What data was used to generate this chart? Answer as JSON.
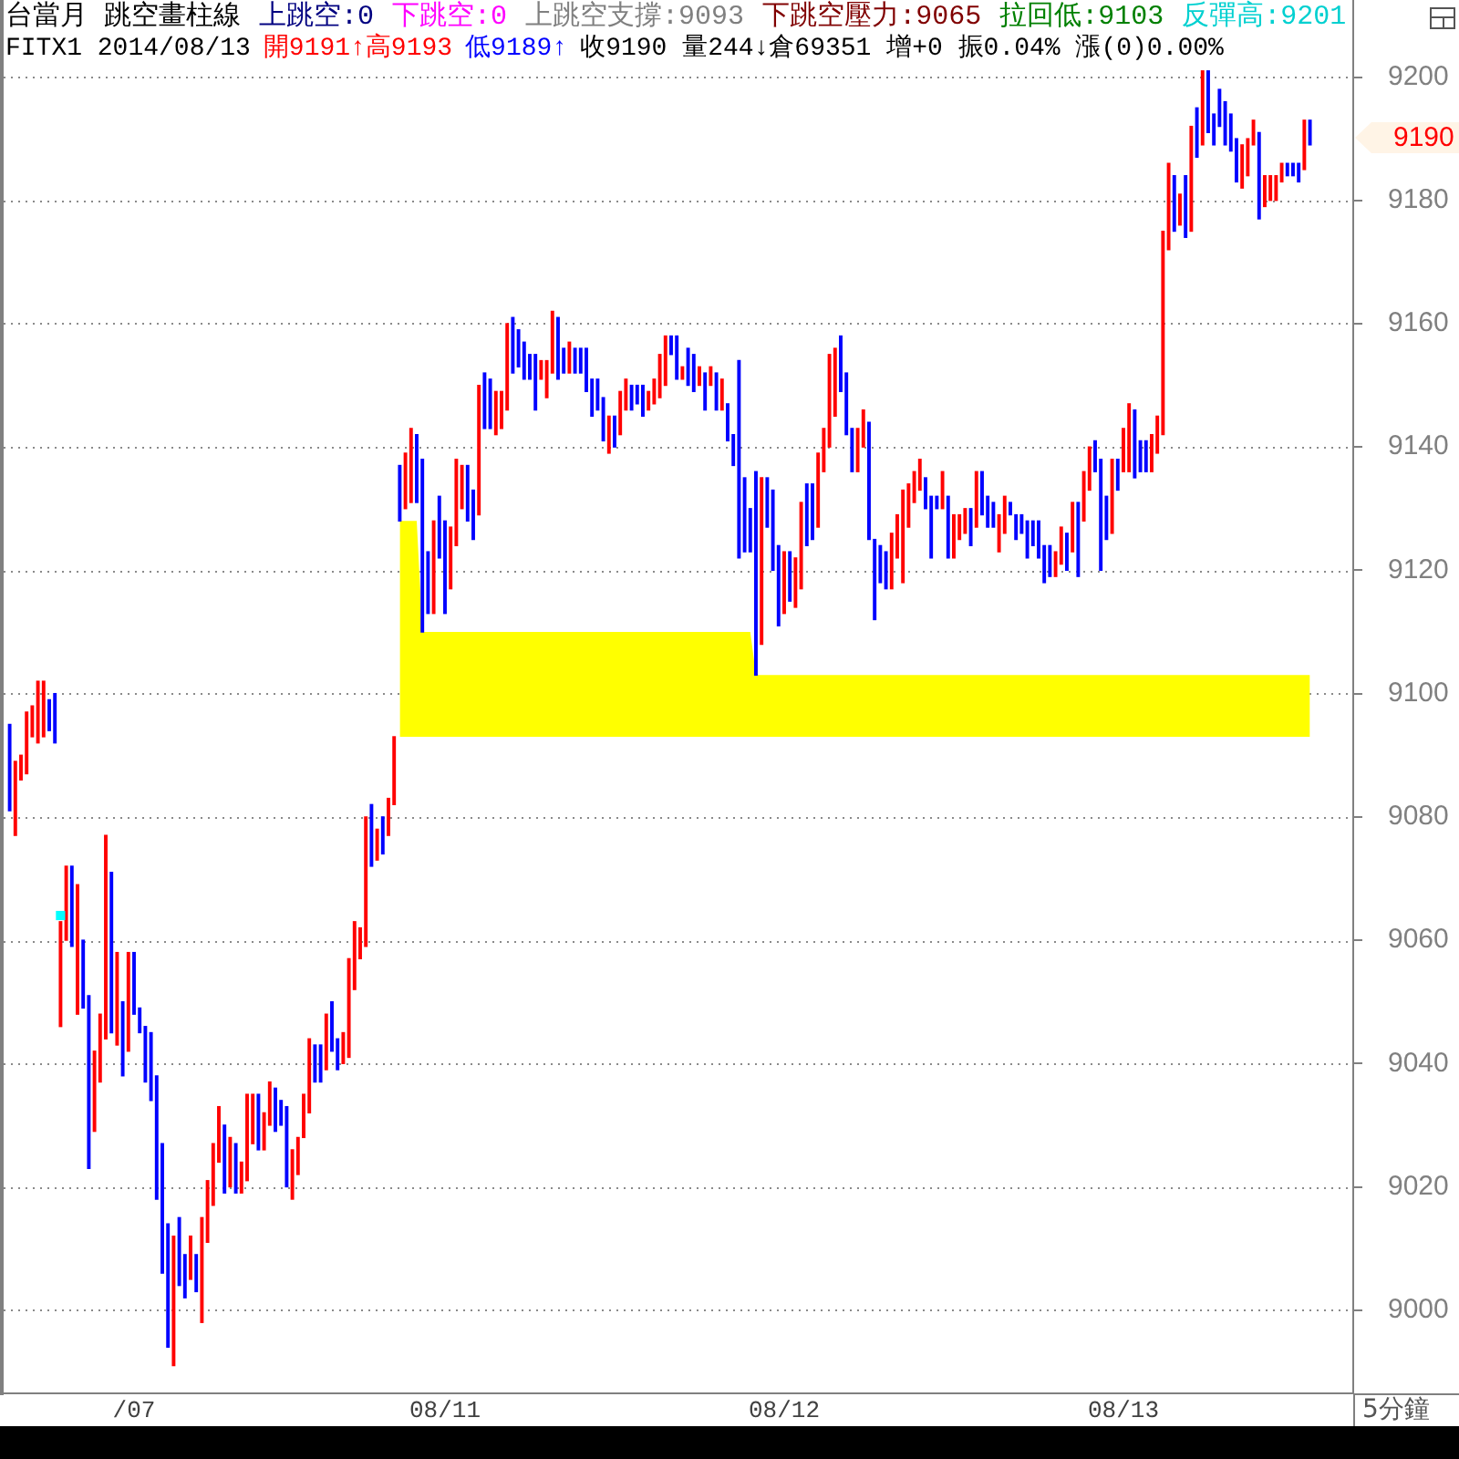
{
  "chart_data": {
    "type": "bar",
    "title": "台當月 跳空畫柱線",
    "annotations": [
      "上跳空:0",
      "下跳空:0",
      "上跳空支撐:9093",
      "下跳空壓力:9065",
      "拉回低:9103",
      "反彈高:9201",
      "FITX1 2014/08/13",
      "開9191↑高9193",
      "低9189↑",
      "收9190 量244↓倉69351 增+0 振0.04% 漲(0)0.00%",
      "5分鐘",
      "9190"
    ],
    "categories": [
      null,
      null,
      null,
      null,
      null,
      null,
      null,
      null,
      null,
      null,
      null,
      null,
      null,
      null,
      null,
      null,
      null,
      null,
      null,
      null,
      null,
      null,
      "/07",
      null,
      null,
      null,
      null,
      null,
      null,
      null,
      null,
      null,
      null,
      null,
      null,
      null,
      null,
      null,
      null,
      null,
      null,
      null,
      null,
      null,
      null,
      null,
      null,
      null,
      null,
      null,
      null,
      null,
      null,
      null,
      null,
      null,
      null,
      null,
      null,
      null,
      null,
      null,
      null,
      null,
      null,
      null,
      null,
      null,
      null,
      null,
      null,
      null,
      null,
      null,
      null,
      null,
      null,
      "08/11",
      null,
      null,
      null,
      null,
      null,
      null,
      null,
      null,
      null,
      null,
      null,
      null,
      null,
      null,
      null,
      null,
      null,
      null,
      null,
      null,
      null,
      null,
      null,
      null,
      null,
      null,
      null,
      null,
      null,
      null,
      null,
      null,
      null,
      null,
      null,
      null,
      null,
      null,
      null,
      null,
      null,
      null,
      null,
      null,
      null,
      null,
      null,
      null,
      null,
      null,
      null,
      null,
      null,
      null,
      null,
      null,
      null,
      null,
      null,
      "08/12",
      null,
      null,
      null,
      null,
      null,
      null,
      null,
      null,
      null,
      null,
      null,
      null,
      null,
      null,
      null,
      null,
      null,
      null,
      null,
      null,
      null,
      null,
      null,
      null,
      null,
      null,
      null,
      null,
      null,
      null,
      null,
      null,
      null,
      null,
      null,
      null,
      null,
      null,
      null,
      null,
      null,
      null,
      null,
      null,
      null,
      null,
      null,
      null,
      null,
      null,
      null,
      null,
      null,
      null,
      null,
      null,
      null,
      null,
      null,
      "08/13",
      null,
      null,
      null,
      null,
      null,
      null,
      null,
      null,
      null,
      null,
      null,
      null,
      null,
      null,
      null,
      null,
      null,
      null,
      null,
      null,
      null,
      null,
      null,
      null,
      null,
      null,
      null,
      null,
      null,
      null,
      null,
      null,
      null
    ],
    "series": [
      {
        "type": "line",
        "color": "#ffff00",
        "values": [
          null,
          null,
          null,
          null,
          null,
          null,
          null,
          null,
          null,
          null,
          null,
          null,
          null,
          null,
          null,
          null,
          null,
          null,
          null,
          null,
          null,
          null,
          null,
          null,
          null,
          null,
          null,
          null,
          null,
          null,
          null,
          null,
          null,
          null,
          null,
          null,
          null,
          null,
          null,
          null,
          null,
          null,
          null,
          null,
          null,
          null,
          null,
          null,
          null,
          null,
          null,
          null,
          null,
          null,
          null,
          null,
          null,
          null,
          null,
          null,
          null,
          null,
          null,
          null,
          null,
          null,
          null,
          null,
          null,
          null,
          null,
          null,
          null,
          null,
          null,
          null,
          null,
          null,
          null,
          null,
          null,
          null,
          null,
          null,
          null,
          null,
          null,
          null,
          null,
          null,
          null,
          null,
          null,
          null,
          null,
          null,
          null,
          null,
          null,
          null,
          null,
          null,
          null,
          null,
          null,
          null,
          null,
          null,
          null,
          null,
          null,
          null,
          null,
          null,
          null,
          null,
          null,
          null,
          null,
          null,
          null,
          null,
          null,
          null,
          null,
          null,
          null,
          null,
          null,
          null,
          null,
          null,
          null,
          null,
          null,
          null,
          null,
          null,
          null,
          null,
          null,
          null,
          null,
          null,
          null,
          null,
          null,
          null,
          null,
          null,
          null,
          null,
          null,
          null,
          null,
          null,
          null,
          null,
          null,
          null,
          null,
          null,
          null,
          null,
          null,
          null,
          null,
          null,
          null,
          null,
          null,
          null,
          null,
          null,
          null,
          null,
          null,
          null,
          null,
          null,
          null,
          null,
          null,
          null,
          null,
          null,
          null,
          null,
          null,
          null,
          null,
          null,
          null,
          null,
          null,
          null,
          null,
          null,
          null,
          null,
          null,
          null,
          null,
          null,
          null,
          null,
          null,
          null,
          null,
          null,
          null,
          null,
          null,
          null,
          null,
          null,
          null,
          null,
          null,
          null,
          null,
          null,
          null,
          null,
          null,
          null,
          null,
          null,
          null,
          null,
          null
        ],
        "upper": [
          null,
          null,
          null,
          null,
          null,
          null,
          null,
          null,
          null,
          null,
          null,
          null,
          null,
          null,
          null,
          null,
          null,
          null,
          null,
          null,
          null,
          null,
          null,
          null,
          null,
          null,
          null,
          null,
          null,
          null,
          null,
          null,
          null,
          null,
          null,
          null,
          null,
          null,
          null,
          null,
          null,
          null,
          null,
          null,
          null,
          null,
          null,
          null,
          null,
          null,
          null,
          null,
          null,
          null,
          null,
          null,
          null,
          null,
          null,
          null,
          null,
          null,
          null,
          null,
          null,
          null,
          null,
          null,
          null,
          9128,
          9128,
          9128,
          9128,
          9110,
          9110,
          9110,
          9110,
          9110,
          9110,
          9110,
          9110,
          9110,
          9110,
          9110,
          9110,
          9110,
          9110,
          9110,
          9110,
          9110,
          9110,
          9110,
          9110,
          9110,
          9110,
          9110,
          9110,
          9110,
          9110,
          9110,
          9110,
          9110,
          9110,
          9110,
          9110,
          9110,
          9110,
          9110,
          9110,
          9110,
          9110,
          9110,
          9110,
          9110,
          9110,
          9110,
          9110,
          9110,
          9110,
          9110,
          9110,
          9110,
          9110,
          9110,
          9110,
          9110,
          9110,
          9110,
          9110,
          9110,
          9110,
          9110,
          9103,
          9103,
          9103,
          9103,
          9103,
          9103,
          9103,
          9103,
          9103,
          9103,
          9103,
          9103,
          9103,
          9103,
          9103,
          9103,
          9103,
          9103,
          9103,
          9103,
          9103,
          9103,
          9103,
          9103,
          9103,
          9103,
          9103,
          9103,
          9103,
          9103,
          9103,
          9103,
          9103,
          9103,
          9103,
          9103,
          9103,
          9103,
          9103,
          9103,
          9103,
          9103,
          9103,
          9103,
          9103,
          9103,
          9103,
          9103,
          9103,
          9103,
          9103,
          9103,
          9103,
          9103,
          9103,
          9103,
          9103,
          9103,
          9103,
          9103,
          9103,
          9103,
          9103,
          9103,
          9103,
          9103,
          9103,
          9103,
          9103,
          9103,
          9103,
          9103,
          9103,
          9103,
          9103,
          9103,
          9103,
          9103,
          9103,
          9103,
          9103,
          9103,
          9103,
          9103,
          9103,
          9103,
          9103,
          9103,
          9103,
          9103,
          9103,
          9103,
          9103,
          9103,
          9103,
          9103,
          9103,
          9103,
          9103
        ],
        "lower": [
          null,
          null,
          null,
          null,
          null,
          null,
          null,
          null,
          null,
          null,
          null,
          null,
          null,
          null,
          null,
          null,
          null,
          null,
          null,
          null,
          null,
          null,
          null,
          null,
          null,
          null,
          null,
          null,
          null,
          null,
          null,
          null,
          null,
          null,
          null,
          null,
          null,
          null,
          null,
          null,
          null,
          null,
          null,
          null,
          null,
          null,
          null,
          null,
          null,
          null,
          null,
          null,
          null,
          null,
          null,
          null,
          null,
          null,
          null,
          null,
          null,
          null,
          null,
          null,
          null,
          null,
          null,
          null,
          null,
          9093,
          9093,
          9093,
          9093,
          9093,
          9093,
          9093,
          9093,
          9093,
          9093,
          9093,
          9093,
          9093,
          9093,
          9093,
          9093,
          9093,
          9093,
          9093,
          9093,
          9093,
          9093,
          9093,
          9093,
          9093,
          9093,
          9093,
          9093,
          9093,
          9093,
          9093,
          9093,
          9093,
          9093,
          9093,
          9093,
          9093,
          9093,
          9093,
          9093,
          9093,
          9093,
          9093,
          9093,
          9093,
          9093,
          9093,
          9093,
          9093,
          9093,
          9093,
          9093,
          9093,
          9093,
          9093,
          9093,
          9093,
          9093,
          9093,
          9093,
          9093,
          9093,
          9093,
          9093,
          9093,
          9093,
          9093,
          9093,
          9093,
          9093,
          9093,
          9093,
          9093,
          9093,
          9093,
          9093,
          9093,
          9093,
          9093,
          9093,
          9093,
          9093,
          9093,
          9093,
          9093,
          9093,
          9093,
          9093,
          9093,
          9093,
          9093,
          9093,
          9093,
          9093,
          9093,
          9093,
          9093,
          9093,
          9093,
          9093,
          9093,
          9093,
          9093,
          9093,
          9093,
          9093,
          9093,
          9093,
          9093,
          9093,
          9093,
          9093,
          9093,
          9093,
          9093,
          9093,
          9093,
          9093,
          9093,
          9093,
          9093,
          9093,
          9093,
          9093,
          9093,
          9093,
          9093,
          9093,
          9093,
          9093,
          9093,
          9093,
          9093,
          9093,
          9093,
          9093,
          9093,
          9093,
          9093,
          9093,
          9093,
          9093,
          9093,
          9093,
          9093,
          9093,
          9093,
          9093,
          9093,
          9093,
          9093,
          9093,
          9093,
          9093,
          9093,
          9093,
          9093,
          9093,
          9093,
          9093,
          9093,
          9093
        ]
      },
      {
        "colors": [
          "#0000ff",
          "#ff0000",
          "#ff0000",
          "#ff0000",
          "#ff0000",
          "#ff0000",
          "#ff0000",
          "#0000ff",
          "#0000ff",
          "#ff0000",
          "#ff0000",
          "#0000ff",
          "#ff0000",
          "#0000ff",
          "#0000ff",
          "#ff0000",
          "#ff0000",
          "#ff0000",
          "#0000ff",
          "#ff0000",
          "#0000ff",
          "#ff0000",
          "#0000ff",
          "#0000ff",
          "#0000ff",
          "#0000ff",
          "#0000ff",
          "#0000ff",
          "#0000ff",
          "#ff0000",
          "#0000ff",
          "#0000ff",
          "#ff0000",
          "#0000ff",
          "#ff0000",
          "#ff0000",
          "#ff0000",
          "#ff0000",
          "#0000ff",
          "#ff0000",
          "#0000ff",
          "#ff0000",
          "#ff0000",
          "#ff0000",
          "#0000ff",
          "#ff0000",
          "#ff0000",
          "#0000ff",
          "#0000ff",
          "#0000ff",
          "#ff0000",
          "#ff0000",
          "#ff0000",
          "#ff0000",
          "#0000ff",
          "#0000ff",
          "#ff0000",
          "#0000ff",
          "#0000ff",
          "#ff0000",
          "#ff0000",
          "#ff0000",
          "#ff0000",
          "#ff0000",
          "#0000ff",
          "#ff0000",
          "#0000ff",
          "#ff0000",
          "#ff0000",
          "#0000ff",
          "#ff0000",
          "#ff0000",
          "#0000ff",
          "#0000ff",
          "#0000ff",
          "#ff0000",
          "#0000ff",
          "#0000ff",
          "#ff0000",
          "#ff0000",
          "#ff0000",
          "#0000ff",
          "#0000ff",
          "#ff0000",
          "#0000ff",
          "#0000ff",
          "#ff0000",
          "#ff0000",
          "#ff0000",
          "#0000ff",
          "#0000ff",
          "#0000ff",
          "#0000ff",
          "#0000ff",
          "#ff0000",
          "#ff0000",
          "#ff0000",
          "#0000ff",
          "#0000ff",
          "#ff0000",
          "#0000ff",
          "#0000ff",
          "#0000ff",
          "#0000ff",
          "#0000ff",
          "#0000ff",
          "#ff0000",
          "#0000ff",
          "#ff0000",
          "#ff0000",
          "#0000ff",
          "#0000ff",
          "#0000ff",
          "#ff0000",
          "#ff0000",
          "#ff0000",
          "#ff0000",
          "#0000ff",
          "#0000ff",
          "#ff0000",
          "#0000ff",
          "#0000ff",
          "#ff0000",
          "#0000ff",
          "#ff0000",
          "#0000ff",
          "#ff0000",
          "#0000ff",
          "#0000ff",
          "#0000ff",
          "#0000ff",
          "#0000ff",
          "#0000ff",
          "#ff0000",
          "#0000ff",
          "#0000ff",
          "#0000ff",
          "#ff0000",
          "#0000ff",
          "#ff0000",
          "#ff0000",
          "#0000ff",
          "#0000ff",
          "#ff0000",
          "#ff0000",
          "#ff0000",
          "#ff0000",
          "#0000ff",
          "#0000ff",
          "#0000ff",
          "#ff0000",
          "#ff0000",
          "#0000ff",
          "#0000ff",
          "#0000ff",
          "#0000ff",
          "#ff0000",
          "#ff0000",
          "#ff0000",
          "#ff0000",
          "#ff0000",
          "#ff0000",
          "#0000ff",
          "#0000ff",
          "#0000ff",
          "#ff0000",
          "#0000ff",
          "#ff0000",
          "#ff0000",
          "#ff0000",
          "#0000ff",
          "#ff0000",
          "#0000ff",
          "#0000ff",
          "#0000ff",
          "#ff0000",
          "#ff0000",
          "#0000ff",
          "#0000ff",
          "#0000ff",
          "#0000ff",
          "#0000ff",
          "#0000ff",
          "#0000ff",
          "#0000ff",
          "#ff0000",
          "#ff0000",
          "#0000ff",
          "#ff0000",
          "#0000ff",
          "#ff0000",
          "#ff0000",
          "#0000ff",
          "#0000ff",
          "#0000ff",
          "#ff0000",
          "#0000ff",
          "#ff0000",
          "#ff0000",
          "#0000ff",
          "#0000ff",
          "#0000ff",
          "#ff0000",
          "#ff0000",
          "#ff0000",
          "#ff0000",
          "#0000ff",
          "#ff0000",
          "#0000ff",
          "#ff0000",
          "#0000ff",
          "#ff0000",
          "#0000ff",
          "#0000ff",
          "#0000ff",
          "#0000ff",
          "#0000ff",
          "#0000ff",
          "#ff0000",
          "#ff0000",
          "#ff0000",
          "#0000ff",
          "#ff0000",
          "#ff0000",
          "#ff0000",
          "#ff0000",
          "#0000ff",
          "#0000ff",
          "#0000ff",
          "#ff0000",
          "#0000ff"
        ],
        "base": [
          9081,
          9077,
          9086,
          9087,
          9093,
          9092,
          9093,
          9094,
          9092,
          9046,
          9060,
          9059,
          9048,
          9049,
          9023,
          9029,
          9037,
          9044,
          9045,
          9043,
          9038,
          9042,
          9048,
          9045,
          9037,
          9034,
          9018,
          9006,
          8994,
          8991,
          9004,
          9002,
          9005,
          9003,
          8998,
          9011,
          9017,
          9024,
          9019,
          9020,
          9019,
          9019,
          9021,
          9027,
          9026,
          9026,
          9030,
          9029,
          9030,
          9020,
          9018,
          9022,
          9028,
          9032,
          9037,
          9037,
          9039,
          9042,
          9039,
          9040,
          9041,
          9052,
          9057,
          9059,
          9072,
          9073,
          9074,
          9077,
          9082,
          9128,
          9130,
          9131,
          9131,
          9110,
          9113,
          9113,
          9122,
          9113,
          9117,
          9124,
          9130,
          9128,
          9125,
          9129,
          9143,
          9143,
          9142,
          9143,
          9146,
          9152,
          9153,
          9151,
          9151,
          9146,
          9151,
          9148,
          9152,
          9151,
          9152,
          9152,
          9152,
          9152,
          9149,
          9145,
          9146,
          9141,
          9139,
          9140,
          9142,
          9146,
          9146,
          9147,
          9145,
          9146,
          9147,
          9148,
          9150,
          9155,
          9151,
          9151,
          9150,
          9149,
          9150,
          9146,
          9150,
          9146,
          9146,
          9141,
          9137,
          9122,
          9123,
          9123,
          9103,
          9108,
          9127,
          9120,
          9111,
          9113,
          9115,
          9114,
          9117,
          9124,
          9125,
          9127,
          9136,
          9140,
          9145,
          9149,
          9142,
          9136,
          9136,
          9140,
          9125,
          9112,
          9118,
          9117,
          9117,
          9122,
          9118,
          9127,
          9131,
          9133,
          9130,
          9122,
          9130,
          9130,
          9122,
          9122,
          9125,
          9126,
          9124,
          9127,
          9129,
          9127,
          9127,
          9123,
          9126,
          9129,
          9125,
          9126,
          9122,
          9124,
          9122,
          9118,
          9119,
          9119,
          9121,
          9120,
          9123,
          9119,
          9128,
          9133,
          9136,
          9120,
          9125,
          9126,
          9133,
          9136,
          9136,
          9135,
          9136,
          9136,
          9136,
          9139,
          9142,
          9172,
          9175,
          9176,
          9174,
          9175,
          9187,
          9189,
          9191,
          9189,
          9192,
          9189,
          9188,
          9183,
          9182,
          9184,
          9189,
          9177,
          9179,
          9180,
          9180,
          9183,
          9184,
          9184,
          9183,
          9185,
          9189
        ],
        "values": [
          14,
          12,
          4,
          10,
          5,
          10,
          9,
          5,
          8,
          17,
          12,
          13,
          21,
          11,
          28,
          13,
          11,
          33,
          26,
          15,
          12,
          16,
          10,
          4,
          9,
          11,
          20,
          21,
          20,
          21,
          11,
          7,
          7,
          6,
          17,
          10,
          10,
          9,
          11,
          8,
          8,
          5,
          14,
          8,
          9,
          6,
          7,
          7,
          4,
          13,
          8,
          6,
          7,
          12,
          6,
          6,
          9,
          8,
          5,
          5,
          16,
          11,
          5,
          21,
          10,
          5,
          6,
          6,
          11,
          9,
          9,
          12,
          11,
          28,
          10,
          15,
          10,
          15,
          10,
          14,
          7,
          9,
          8,
          21,
          9,
          8,
          7,
          6,
          14,
          9,
          6,
          6,
          4,
          9,
          3,
          6,
          10,
          10,
          4,
          5,
          4,
          4,
          7,
          6,
          5,
          7,
          6,
          5,
          7,
          5,
          4,
          3,
          5,
          3,
          4,
          7,
          8,
          3,
          7,
          2,
          6,
          6,
          3,
          6,
          3,
          6,
          5,
          6,
          5,
          32,
          12,
          7,
          33,
          27,
          8,
          13,
          13,
          10,
          8,
          8,
          14,
          10,
          9,
          12,
          7,
          15,
          11,
          9,
          10,
          7,
          7,
          6,
          19,
          13,
          6,
          6,
          9,
          7,
          15,
          7,
          5,
          5,
          5,
          10,
          2,
          6,
          10,
          7,
          4,
          4,
          6,
          9,
          7,
          5,
          4,
          6,
          6,
          2,
          4,
          3,
          6,
          4,
          6,
          6,
          5,
          4,
          6,
          6,
          8,
          12,
          8,
          7,
          5,
          18,
          7,
          12,
          5,
          7,
          11,
          11,
          5,
          5,
          6,
          6,
          33,
          14,
          9,
          5,
          10,
          17,
          8,
          12,
          10,
          5,
          6,
          7,
          6,
          7,
          7,
          6,
          4,
          14,
          5,
          4,
          4,
          3,
          2,
          2,
          3,
          8,
          4
        ]
      },
      {
        "type": "scatter",
        "color": "#00ffff",
        "marker": "square",
        "values": [
          null,
          null,
          null,
          null,
          null,
          null,
          null,
          null,
          null,
          9064,
          null,
          null,
          null,
          null,
          null,
          null,
          null,
          null,
          null,
          null,
          null,
          null,
          null,
          null,
          null,
          null,
          null,
          null,
          null,
          null,
          null,
          null,
          null,
          null,
          null,
          null,
          null,
          null,
          null,
          null,
          null,
          null,
          null,
          null,
          null,
          null,
          null,
          null,
          null,
          null,
          null,
          null,
          null,
          null,
          null,
          null,
          null,
          null,
          null,
          null,
          null,
          null,
          null,
          null,
          null,
          null,
          null,
          null,
          null,
          null,
          null,
          null,
          null,
          null,
          null,
          null,
          null,
          null,
          null,
          null,
          null,
          null,
          null,
          null,
          null,
          null,
          null,
          null,
          null,
          null,
          null,
          null,
          null,
          null,
          null,
          null,
          null,
          null,
          null,
          null,
          null,
          null,
          null,
          null,
          null,
          null,
          null,
          null,
          null,
          null,
          null,
          null,
          null,
          null,
          null,
          null,
          null,
          null,
          null,
          null,
          null,
          null,
          null,
          null,
          null,
          null,
          null,
          null,
          null,
          null,
          null,
          null,
          null,
          null,
          null,
          null,
          null,
          null,
          null,
          null,
          null,
          null,
          null,
          null,
          null,
          null,
          null,
          null,
          null,
          null,
          null,
          null,
          null,
          null,
          null,
          null,
          null,
          null,
          null,
          null,
          null,
          null,
          null,
          null,
          null,
          null,
          null,
          null,
          null,
          null,
          null,
          null,
          null,
          null,
          null,
          null,
          null,
          null,
          null,
          null,
          null,
          null,
          null,
          null,
          null,
          null,
          null,
          null,
          null,
          null,
          null,
          null,
          null,
          null,
          null,
          null,
          null,
          null,
          null,
          null,
          null,
          null,
          null,
          null,
          null,
          null,
          null,
          null,
          null,
          null,
          null,
          null,
          null,
          null,
          null,
          null,
          null,
          null,
          null,
          null,
          null,
          null,
          null,
          null,
          null,
          null,
          null,
          null,
          null,
          null,
          null
        ]
      }
    ],
    "ylim": [
      8986.5,
      9212.5
    ],
    "yticks": [
      9000,
      9020,
      9040,
      9060,
      9080,
      9100,
      9120,
      9140,
      9160,
      9180,
      9200
    ],
    "grid": "y"
  }
}
